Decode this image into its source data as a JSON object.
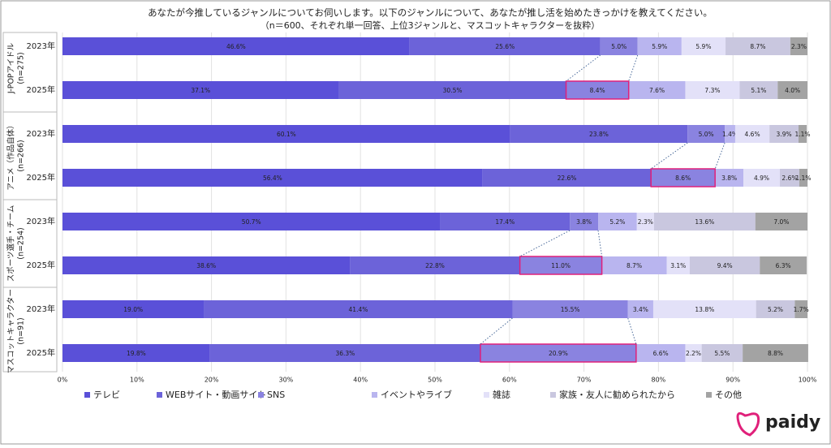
{
  "chart_data": {
    "type": "bar",
    "orientation": "horizontal",
    "stacked": true,
    "title": "あなたが今推しているジャンルについてお伺いします。以下のジャンルについて、あなたが推し活を始めたきっかけを教えてください。",
    "subtitle": "（n＝600、それぞれ単一回答、上位3ジャンルと、マスコットキャラクターを抜粋）",
    "groups": [
      {
        "label": "J-POPアイドル",
        "n": "(n=275)"
      },
      {
        "label": "アニメ（作品自体）",
        "n": "(n=266)"
      },
      {
        "label": "スポーツ選手・チーム",
        "n": "(n=254)"
      },
      {
        "label": "マスコットキャラクター",
        "n": "(n=91)"
      }
    ],
    "categories": [
      "2023年",
      "2025年",
      "2023年",
      "2025年",
      "2023年",
      "2025年",
      "2023年",
      "2025年"
    ],
    "series": [
      {
        "name": "テレビ",
        "color": "#5a50d8",
        "values": [
          46.6,
          37.1,
          60.1,
          56.4,
          50.7,
          38.6,
          19.0,
          19.8
        ],
        "value_labels": [
          "46.6%",
          "37.1%",
          "60.1%",
          "56.4%",
          "50.7%",
          "38.6%",
          "19.0%",
          "19.8%"
        ]
      },
      {
        "name": "WEBサイト・動画サイト",
        "color": "#6c63d9",
        "values": [
          25.6,
          30.5,
          23.8,
          22.6,
          17.4,
          22.8,
          41.4,
          36.3
        ],
        "value_labels": [
          "25.6%",
          "30.5%",
          "23.8%",
          "22.6%",
          "17.4%",
          "22.8%",
          "41.4%",
          "36.3%"
        ]
      },
      {
        "name": "SNS",
        "color": "#8a83e0",
        "values": [
          5.0,
          8.4,
          5.0,
          8.6,
          3.8,
          11.0,
          15.5,
          20.9
        ],
        "value_labels": [
          "5.0%",
          "8.4%",
          "5.0%",
          "8.6%",
          "3.8%",
          "11.0%",
          "15.5%",
          "20.9%"
        ]
      },
      {
        "name": "イベントやライブ",
        "color": "#b9b5ef",
        "values": [
          5.9,
          7.6,
          1.4,
          3.8,
          5.2,
          8.7,
          3.4,
          6.6
        ],
        "value_labels": [
          "5.9%",
          "7.6%",
          "1.4%",
          "3.8%",
          "5.2%",
          "8.7%",
          "3.4%",
          "6.6%"
        ]
      },
      {
        "name": "雑誌",
        "color": "#e3e1f8",
        "values": [
          5.9,
          7.3,
          4.6,
          4.9,
          2.3,
          3.1,
          13.8,
          2.2
        ],
        "value_labels": [
          "5.9%",
          "7.3%",
          "4.6%",
          "4.9%",
          "2.3%",
          "3.1%",
          "13.8%",
          "2.2%"
        ]
      },
      {
        "name": "家族・友人に勧められたから",
        "color": "#c9c7df",
        "values": [
          8.7,
          5.1,
          3.9,
          2.6,
          13.6,
          9.4,
          5.2,
          5.5
        ],
        "value_labels": [
          "8.7%",
          "5.1%",
          "3.9%",
          "2.6%",
          "13.6%",
          "9.4%",
          "5.2%",
          "5.5%"
        ]
      },
      {
        "name": "その他",
        "color": "#a3a3a3",
        "values": [
          2.3,
          4.0,
          1.1,
          1.1,
          7.0,
          6.3,
          1.7,
          8.8
        ],
        "value_labels": [
          "2.3%",
          "4.0%",
          "1.1%",
          "1.1%",
          "7.0%",
          "6.3%",
          "1.7%",
          "8.8%"
        ]
      }
    ],
    "xlim": [
      0,
      100
    ],
    "xticks": [
      {
        "value": 0,
        "label": "0%"
      },
      {
        "value": 10,
        "label": "10%"
      },
      {
        "value": 20,
        "label": "20%"
      },
      {
        "value": 30,
        "label": "30%"
      },
      {
        "value": 40,
        "label": "40%"
      },
      {
        "value": 50,
        "label": "50%"
      },
      {
        "value": 60,
        "label": "60%"
      },
      {
        "value": 70,
        "label": "70%"
      },
      {
        "value": 80,
        "label": "80%"
      },
      {
        "value": 90,
        "label": "90%"
      },
      {
        "value": 100,
        "label": "100%"
      }
    ],
    "grid": true,
    "highlight_series": 2,
    "highlight_color": "#e0207a"
  },
  "brand": "paidy"
}
